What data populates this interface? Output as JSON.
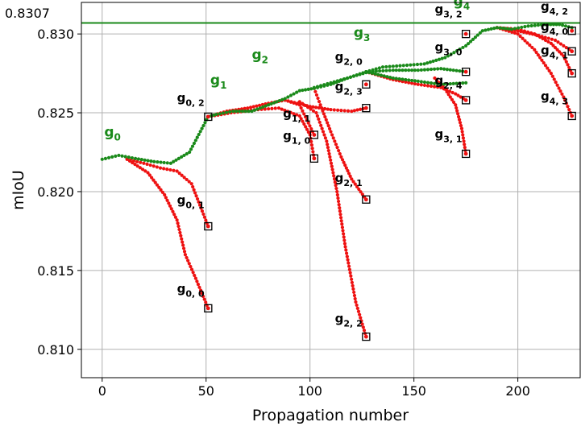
{
  "chart_data": {
    "type": "scatter",
    "xlabel": "Propagation number",
    "ylabel": "mIoU",
    "xlim": [
      -10,
      230
    ],
    "ylim": [
      0.8082,
      0.832
    ],
    "xticks": [
      0,
      50,
      100,
      150,
      200
    ],
    "yticks": [
      0.81,
      0.815,
      0.82,
      0.825,
      0.83
    ],
    "ytick_labels": [
      "0.810",
      "0.815",
      "0.820",
      "0.825",
      "0.830"
    ],
    "grid": true,
    "colors": {
      "green": "#1a8a1a",
      "red": "#ee1111"
    },
    "reference_line": {
      "value": 0.8307,
      "label": "0.8307",
      "color": "#1a8a1a"
    },
    "green_path_points": [
      [
        0,
        0.82205
      ],
      [
        8,
        0.8223
      ],
      [
        16,
        0.8221
      ],
      [
        25,
        0.8219
      ],
      [
        33,
        0.8218
      ],
      [
        42,
        0.8225
      ],
      [
        51,
        0.82475
      ],
      [
        55,
        0.8249
      ],
      [
        63,
        0.8251
      ],
      [
        72,
        0.8251
      ],
      [
        80,
        0.8255
      ],
      [
        88,
        0.8259
      ],
      [
        95,
        0.8264
      ],
      [
        102,
        0.82655
      ],
      [
        110,
        0.8268
      ],
      [
        118,
        0.8272
      ],
      [
        127,
        0.8276
      ],
      [
        135,
        0.8279
      ],
      [
        145,
        0.828
      ],
      [
        155,
        0.8281
      ],
      [
        165,
        0.8285
      ],
      [
        175,
        0.82925
      ],
      [
        183,
        0.8302
      ],
      [
        190,
        0.8304
      ],
      [
        197,
        0.8303
      ],
      [
        205,
        0.8305
      ],
      [
        213,
        0.8306
      ],
      [
        220,
        0.8306
      ],
      [
        226,
        0.8304
      ]
    ],
    "green_branches": [
      [
        [
          102,
          0.8266
        ],
        [
          110,
          0.8269
        ],
        [
          118,
          0.8272
        ],
        [
          127,
          0.82755
        ]
      ],
      [
        [
          127,
          0.8276
        ],
        [
          140,
          0.8277
        ],
        [
          152,
          0.8277
        ],
        [
          163,
          0.8278
        ],
        [
          175,
          0.8276
        ]
      ],
      [
        [
          127,
          0.8276
        ],
        [
          140,
          0.8272
        ],
        [
          152,
          0.827
        ],
        [
          163,
          0.8268
        ],
        [
          175,
          0.8269
        ]
      ]
    ],
    "red_branches": [
      [
        [
          12,
          0.82205
        ],
        [
          20,
          0.8218
        ],
        [
          28,
          0.8215
        ],
        [
          36,
          0.8213
        ],
        [
          43,
          0.8205
        ],
        [
          51,
          0.8178
        ]
      ],
      [
        [
          12,
          0.82205
        ],
        [
          22,
          0.8212
        ],
        [
          30,
          0.8198
        ],
        [
          36,
          0.8182
        ],
        [
          40,
          0.816
        ],
        [
          45,
          0.8145
        ],
        [
          51,
          0.8126
        ]
      ],
      [
        [
          51,
          0.82475
        ],
        [
          60,
          0.8251
        ],
        [
          70,
          0.8253
        ],
        [
          80,
          0.8256
        ],
        [
          88,
          0.8258
        ],
        [
          95,
          0.8255
        ],
        [
          102,
          0.8236
        ]
      ],
      [
        [
          51,
          0.82475
        ],
        [
          62,
          0.825
        ],
        [
          75,
          0.8252
        ],
        [
          85,
          0.8253
        ],
        [
          95,
          0.8248
        ],
        [
          100,
          0.8236
        ],
        [
          102,
          0.8221
        ]
      ],
      [
        [
          102,
          0.82655
        ],
        [
          105,
          0.8255
        ],
        [
          110,
          0.8238
        ],
        [
          115,
          0.8222
        ],
        [
          120,
          0.8208
        ],
        [
          127,
          0.8195
        ]
      ],
      [
        [
          95,
          0.8257
        ],
        [
          103,
          0.825
        ],
        [
          108,
          0.8232
        ],
        [
          113,
          0.82
        ],
        [
          117,
          0.8165
        ],
        [
          122,
          0.813
        ],
        [
          127,
          0.8108
        ]
      ],
      [
        [
          88,
          0.8258
        ],
        [
          100,
          0.8254
        ],
        [
          110,
          0.8252
        ],
        [
          120,
          0.8251
        ],
        [
          127,
          0.8253
        ]
      ],
      [
        [
          127,
          0.8276
        ],
        [
          140,
          0.8271
        ],
        [
          152,
          0.8268
        ],
        [
          163,
          0.8266
        ],
        [
          170,
          0.8262
        ],
        [
          175,
          0.8258
        ]
      ],
      [
        [
          160,
          0.8272
        ],
        [
          165,
          0.8265
        ],
        [
          170,
          0.8255
        ],
        [
          173,
          0.824
        ],
        [
          175,
          0.8224
        ]
      ],
      [
        [
          190,
          0.8304
        ],
        [
          200,
          0.8303
        ],
        [
          208,
          0.83
        ],
        [
          216,
          0.8294
        ],
        [
          222,
          0.8286
        ],
        [
          226,
          0.8275
        ]
      ],
      [
        [
          190,
          0.8304
        ],
        [
          200,
          0.83
        ],
        [
          208,
          0.829
        ],
        [
          216,
          0.8275
        ],
        [
          222,
          0.826
        ],
        [
          226,
          0.8248
        ]
      ],
      [
        [
          190,
          0.8304
        ],
        [
          200,
          0.8302
        ],
        [
          210,
          0.8299
        ],
        [
          218,
          0.8296
        ],
        [
          226,
          0.8289
        ]
      ]
    ],
    "end_markers": [
      [
        51,
        0.8178
      ],
      [
        51,
        0.8126
      ],
      [
        51,
        0.82475
      ],
      [
        102,
        0.8236
      ],
      [
        102,
        0.8221
      ],
      [
        127,
        0.8195
      ],
      [
        127,
        0.8108
      ],
      [
        127,
        0.8253
      ],
      [
        127,
        0.8268
      ],
      [
        175,
        0.83
      ],
      [
        175,
        0.8276
      ],
      [
        175,
        0.8258
      ],
      [
        175,
        0.8224
      ],
      [
        226,
        0.8302
      ],
      [
        226,
        0.8289
      ],
      [
        226,
        0.8275
      ],
      [
        226,
        0.8248
      ]
    ],
    "annotations": [
      {
        "base": "g",
        "sub": "0",
        "x": 1,
        "y": 0.8235,
        "color": "green",
        "size": 17
      },
      {
        "base": "g",
        "sub": "1",
        "x": 52,
        "y": 0.8268,
        "color": "green",
        "size": 17
      },
      {
        "base": "g",
        "sub": "2",
        "x": 72,
        "y": 0.8284,
        "color": "green",
        "size": 17
      },
      {
        "base": "g",
        "sub": "3",
        "x": 121,
        "y": 0.8298,
        "color": "green",
        "size": 17
      },
      {
        "base": "g",
        "sub": "4",
        "x": 169,
        "y": 0.8318,
        "color": "green",
        "size": 17
      },
      {
        "base": "g",
        "sub": "0, 2",
        "x": 36,
        "y": 0.8257,
        "color": "black",
        "size": 15
      },
      {
        "base": "g",
        "sub": "0, 1",
        "x": 36,
        "y": 0.8192,
        "color": "black",
        "size": 15
      },
      {
        "base": "g",
        "sub": "0, 0",
        "x": 36,
        "y": 0.8136,
        "color": "black",
        "size": 15
      },
      {
        "base": "g",
        "sub": "1, 1",
        "x": 87,
        "y": 0.8247,
        "color": "black",
        "size": 15
      },
      {
        "base": "g",
        "sub": "1, 0",
        "x": 87,
        "y": 0.8233,
        "color": "black",
        "size": 15
      },
      {
        "base": "g",
        "sub": "2, 0",
        "x": 112,
        "y": 0.8283,
        "color": "black",
        "size": 15
      },
      {
        "base": "g",
        "sub": "2, 3",
        "x": 112,
        "y": 0.8264,
        "color": "black",
        "size": 15
      },
      {
        "base": "g",
        "sub": "2, 1",
        "x": 112,
        "y": 0.8206,
        "color": "black",
        "size": 15
      },
      {
        "base": "g",
        "sub": "2, 2",
        "x": 112,
        "y": 0.8117,
        "color": "black",
        "size": 15
      },
      {
        "base": "g",
        "sub": "3, 2",
        "x": 160,
        "y": 0.8313,
        "color": "black",
        "size": 15
      },
      {
        "base": "g",
        "sub": "3, 0",
        "x": 160,
        "y": 0.8289,
        "color": "black",
        "size": 15
      },
      {
        "base": "g",
        "sub": "2, 4",
        "x": 160,
        "y": 0.8268,
        "color": "black",
        "size": 15
      },
      {
        "base": "g",
        "sub": "3, 1",
        "x": 160,
        "y": 0.8234,
        "color": "black",
        "size": 15
      },
      {
        "base": "g",
        "sub": "4, 2",
        "x": 211,
        "y": 0.8315,
        "color": "black",
        "size": 15
      },
      {
        "base": "g",
        "sub": "4, 0",
        "x": 211,
        "y": 0.8302,
        "color": "black",
        "size": 15
      },
      {
        "base": "g",
        "sub": "4, 1",
        "x": 211,
        "y": 0.8287,
        "color": "black",
        "size": 15
      },
      {
        "base": "g",
        "sub": "4, 3",
        "x": 211,
        "y": 0.8258,
        "color": "black",
        "size": 15
      }
    ]
  }
}
